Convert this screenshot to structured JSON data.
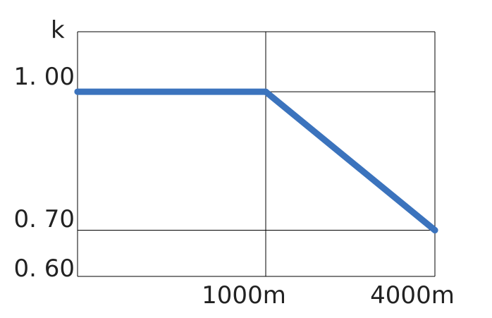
{
  "chart_data": {
    "type": "line",
    "title": "",
    "ylabel": "k",
    "xlabel": "",
    "x_tick_labels": [
      "1000m",
      "4000m"
    ],
    "y_tick_labels": [
      "1. 00",
      "0. 70",
      "0. 60"
    ],
    "y_ticks": [
      1.0,
      0.7,
      0.6
    ],
    "ylim": [
      0.6,
      1.13
    ],
    "x_segments": [
      "0",
      "1000m",
      "4000m"
    ],
    "series": [
      {
        "points": [
          {
            "x": 0,
            "y": 1.0
          },
          {
            "x": 1000,
            "y": 1.0
          },
          {
            "x": 4000,
            "y": 0.7
          }
        ]
      }
    ],
    "grid": true,
    "colors": {
      "line": "#3b73bd",
      "grid": "#000000"
    }
  }
}
